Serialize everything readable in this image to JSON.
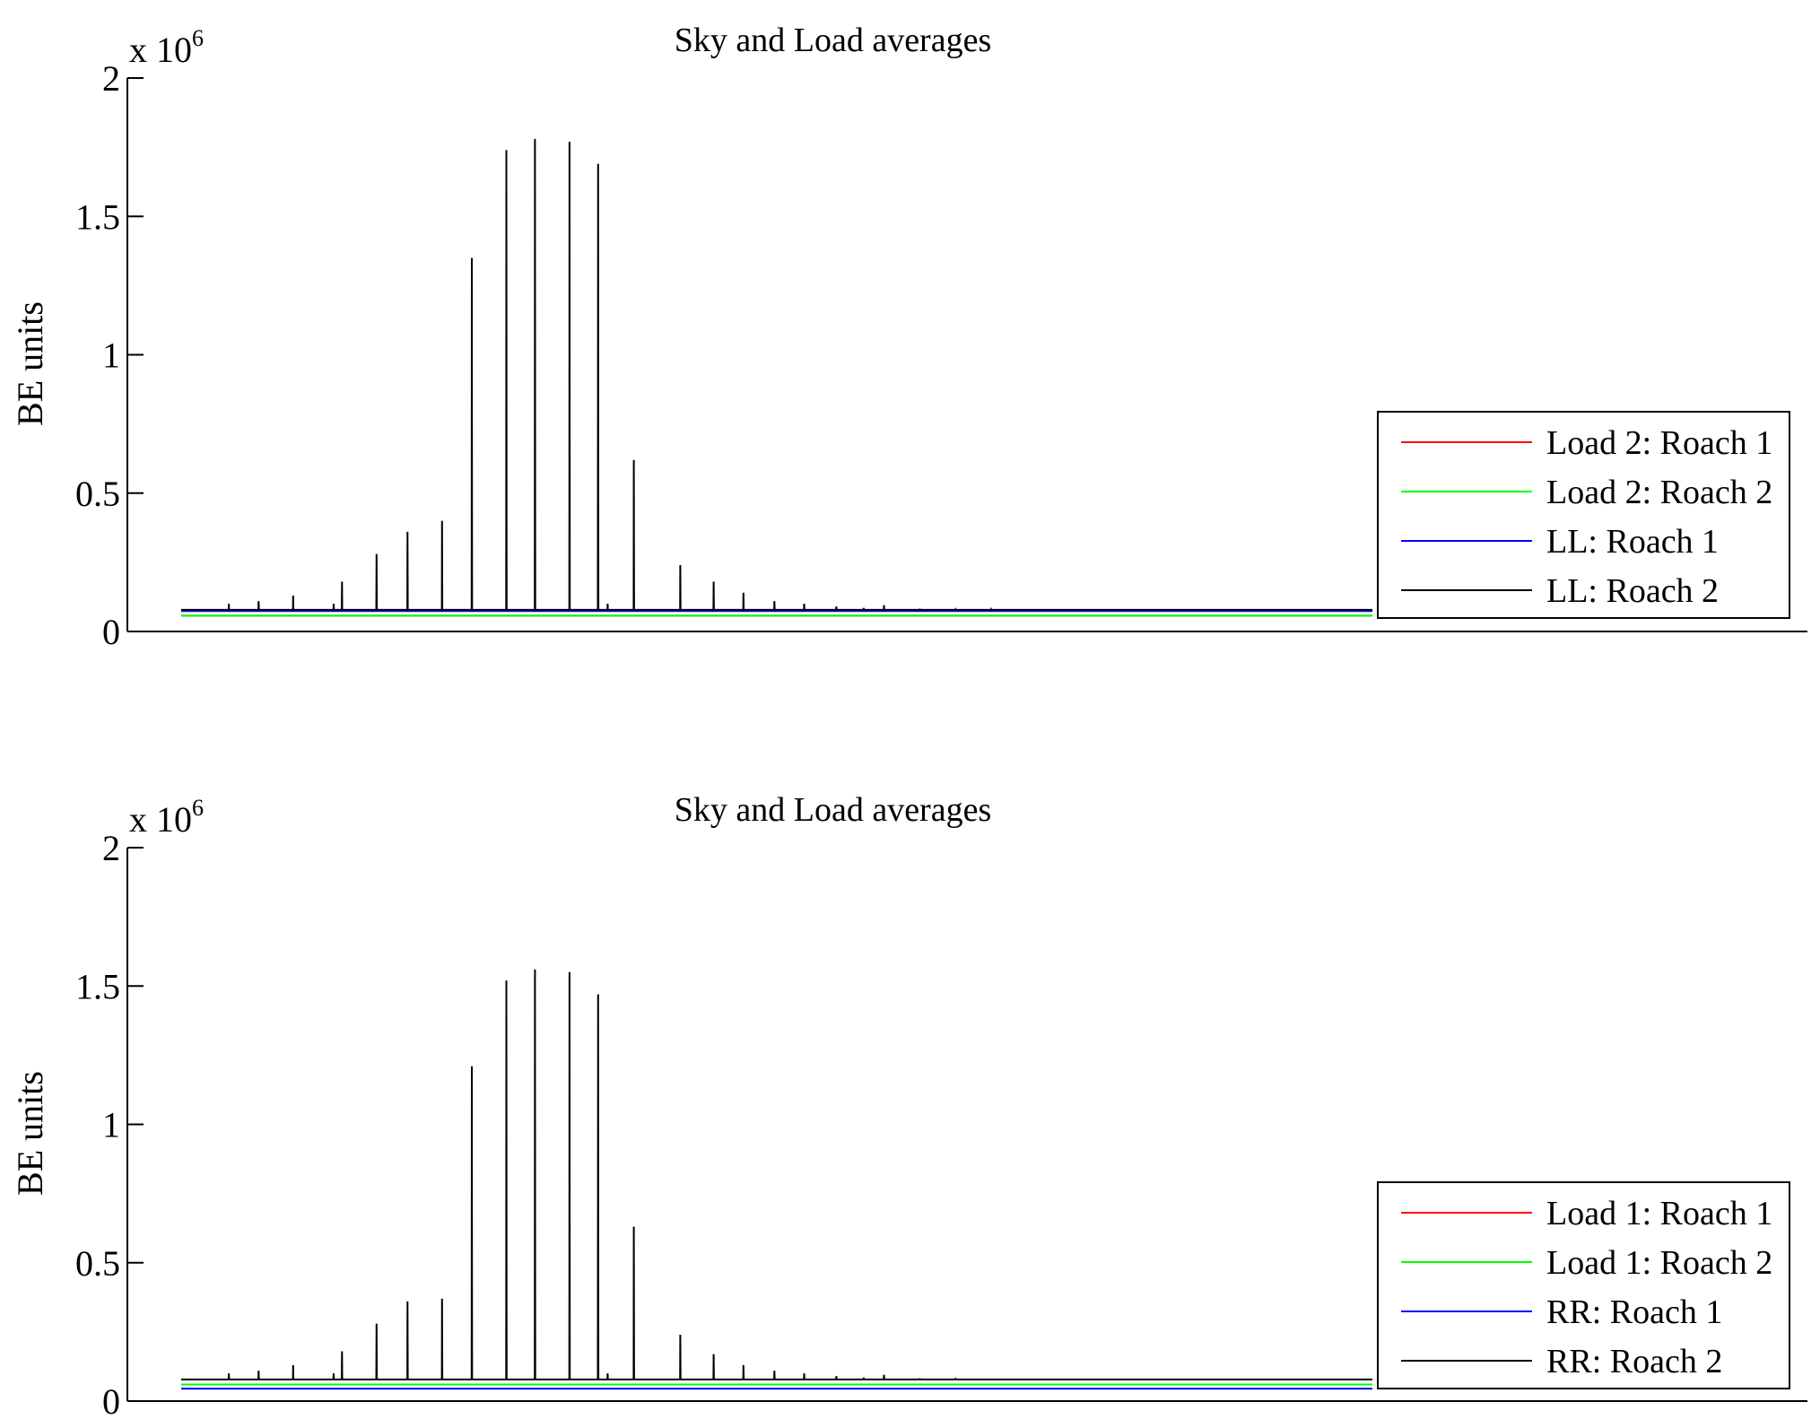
{
  "figure": {
    "background": "#ffffff"
  },
  "chart_data": [
    {
      "type": "line",
      "title": "Sky and Load averages",
      "ylabel": "BE units",
      "xlabel": "",
      "ylim": [
        0,
        2000000
      ],
      "yticks": [
        0,
        500000,
        1000000,
        1500000,
        2000000
      ],
      "ytick_labels": [
        "0",
        "0.5",
        "1",
        "1.5",
        "2"
      ],
      "multiplier_base": "x 10",
      "multiplier_exp": "6",
      "xlim": [
        0,
        100
      ],
      "grid": false,
      "legend_position": "right",
      "series": [
        {
          "name": "Load 2: Roach 1",
          "color": "#ff0000",
          "baseline": 57000,
          "spikes": []
        },
        {
          "name": "Load 2: Roach 2",
          "color": "#00ff00",
          "baseline": 57000,
          "spikes": []
        },
        {
          "name": "LL: Roach 1",
          "color": "#0000ff",
          "baseline": 74000,
          "spikes": []
        },
        {
          "name": "LL: Roach 2",
          "color": "#000000",
          "baseline": 78000,
          "spikes": [
            [
              4.0,
              100000
            ],
            [
              6.5,
              110000
            ],
            [
              9.4,
              130000
            ],
            [
              12.8,
              100000
            ],
            [
              13.5,
              180000
            ],
            [
              16.4,
              280000
            ],
            [
              19.0,
              360000
            ],
            [
              21.9,
              400000
            ],
            [
              24.4,
              1350000
            ],
            [
              27.3,
              1740000
            ],
            [
              29.7,
              1780000
            ],
            [
              32.6,
              1770000
            ],
            [
              35.0,
              1690000
            ],
            [
              35.8,
              100000
            ],
            [
              38.0,
              620000
            ],
            [
              41.9,
              240000
            ],
            [
              44.7,
              180000
            ],
            [
              47.2,
              140000
            ],
            [
              49.8,
              110000
            ],
            [
              52.3,
              100000
            ],
            [
              55.0,
              90000
            ],
            [
              57.3,
              85000
            ],
            [
              59.0,
              95000
            ],
            [
              62.0,
              82000
            ],
            [
              65.0,
              80000
            ],
            [
              68.0,
              80000
            ]
          ]
        }
      ]
    },
    {
      "type": "line",
      "title": "Sky and Load averages",
      "ylabel": "BE units",
      "xlabel": "",
      "ylim": [
        0,
        2000000
      ],
      "yticks": [
        0,
        500000,
        1000000,
        1500000,
        2000000
      ],
      "ytick_labels": [
        "0",
        "0.5",
        "1",
        "1.5",
        "2"
      ],
      "multiplier_base": "x 10",
      "multiplier_exp": "6",
      "xlim": [
        0,
        100
      ],
      "grid": false,
      "legend_position": "right",
      "series": [
        {
          "name": "Load 1: Roach 1",
          "color": "#ff0000",
          "baseline": 60000,
          "spikes": []
        },
        {
          "name": "Load 1: Roach 2",
          "color": "#00ff00",
          "baseline": 60000,
          "spikes": []
        },
        {
          "name": "RR: Roach 1",
          "color": "#0000ff",
          "baseline": 45000,
          "spikes": []
        },
        {
          "name": "RR: Roach 2",
          "color": "#000000",
          "baseline": 78000,
          "spikes": [
            [
              4.0,
              100000
            ],
            [
              6.5,
              110000
            ],
            [
              9.4,
              130000
            ],
            [
              12.8,
              100000
            ],
            [
              13.5,
              180000
            ],
            [
              16.4,
              280000
            ],
            [
              19.0,
              360000
            ],
            [
              21.9,
              370000
            ],
            [
              24.4,
              1210000
            ],
            [
              27.3,
              1520000
            ],
            [
              29.7,
              1560000
            ],
            [
              32.6,
              1550000
            ],
            [
              35.0,
              1470000
            ],
            [
              35.8,
              100000
            ],
            [
              38.0,
              630000
            ],
            [
              41.9,
              240000
            ],
            [
              44.7,
              170000
            ],
            [
              47.2,
              130000
            ],
            [
              49.8,
              110000
            ],
            [
              52.3,
              100000
            ],
            [
              55.0,
              90000
            ],
            [
              57.3,
              85000
            ],
            [
              59.0,
              95000
            ],
            [
              62.0,
              82000
            ],
            [
              65.0,
              80000
            ],
            [
              70.0,
              78000
            ]
          ]
        }
      ]
    }
  ]
}
